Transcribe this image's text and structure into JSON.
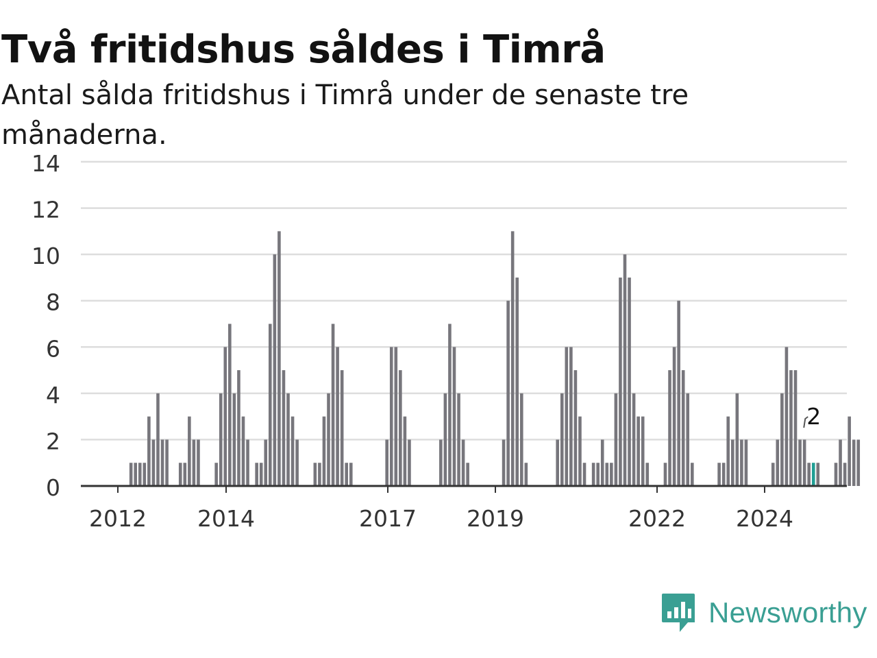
{
  "title": "Två fritidshus såldes i Timrå",
  "subtitle": "Antal sålda fritidshus i Timrå under de senaste tre månaderna.",
  "logo": {
    "text": "Newsworthy",
    "icon": "newsworthy-bar-chart-icon"
  },
  "colors": {
    "bars": "#77767c",
    "highlight": "#1f9e94",
    "grid": "#dddddd",
    "axis": "#333333",
    "brand": "#3a9f93"
  },
  "chart_data": {
    "type": "bar",
    "ylim": [
      0,
      14
    ],
    "yticks": [
      0,
      2,
      4,
      6,
      8,
      10,
      12,
      14
    ],
    "xtick_labels": [
      "2012",
      "2014",
      "2017",
      "2019",
      "2022",
      "2024"
    ],
    "grid": true,
    "values": [
      0,
      0,
      0,
      0,
      0,
      0,
      0,
      1,
      1,
      1,
      1,
      3,
      2,
      4,
      2,
      2,
      0,
      0,
      1,
      1,
      3,
      2,
      2,
      0,
      0,
      0,
      1,
      4,
      6,
      7,
      4,
      5,
      3,
      2,
      0,
      1,
      1,
      2,
      7,
      10,
      11,
      5,
      4,
      3,
      2,
      0,
      0,
      0,
      1,
      1,
      3,
      4,
      7,
      6,
      5,
      1,
      1,
      0,
      0,
      0,
      0,
      0,
      0,
      0,
      2,
      6,
      6,
      5,
      3,
      2,
      0,
      0,
      0,
      0,
      0,
      0,
      2,
      4,
      7,
      6,
      4,
      2,
      1,
      0,
      0,
      0,
      0,
      0,
      0,
      0,
      2,
      8,
      11,
      9,
      4,
      1,
      0,
      0,
      0,
      0,
      0,
      0,
      2,
      4,
      6,
      6,
      5,
      3,
      1,
      0,
      1,
      1,
      2,
      1,
      1,
      4,
      9,
      10,
      9,
      4,
      3,
      3,
      1,
      0,
      0,
      0,
      1,
      5,
      6,
      8,
      5,
      4,
      1,
      0,
      0,
      0,
      0,
      0,
      1,
      1,
      3,
      2,
      4,
      2,
      2,
      0,
      0,
      0,
      0,
      0,
      1,
      2,
      4,
      6,
      5,
      5,
      2,
      2,
      1,
      1,
      1,
      0,
      0,
      0,
      1,
      2,
      1,
      3,
      2,
      2
    ],
    "highlight_index": 159,
    "annotation": "2"
  }
}
